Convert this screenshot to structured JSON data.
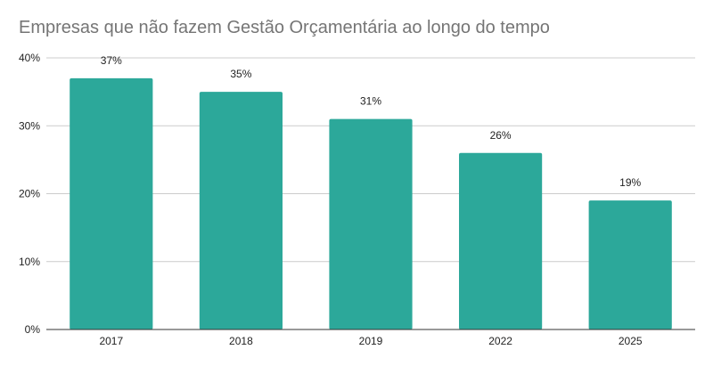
{
  "chart_data": {
    "type": "bar",
    "title": "Empresas que não fazem Gestão Orçamentária ao longo do tempo",
    "categories": [
      "2017",
      "2018",
      "2019",
      "2022",
      "2025"
    ],
    "values": [
      37,
      35,
      31,
      26,
      19
    ],
    "data_labels": [
      "37%",
      "35%",
      "31%",
      "26%",
      "19%"
    ],
    "y_ticks": [
      0,
      10,
      20,
      30,
      40
    ],
    "y_tick_labels": [
      "0%",
      "10%",
      "20%",
      "30%",
      "40%"
    ],
    "ylim": [
      0,
      40
    ],
    "grid": true,
    "bar_color": "#2ca89a",
    "grid_color": "#cccccc",
    "axis_color": "#333333"
  }
}
